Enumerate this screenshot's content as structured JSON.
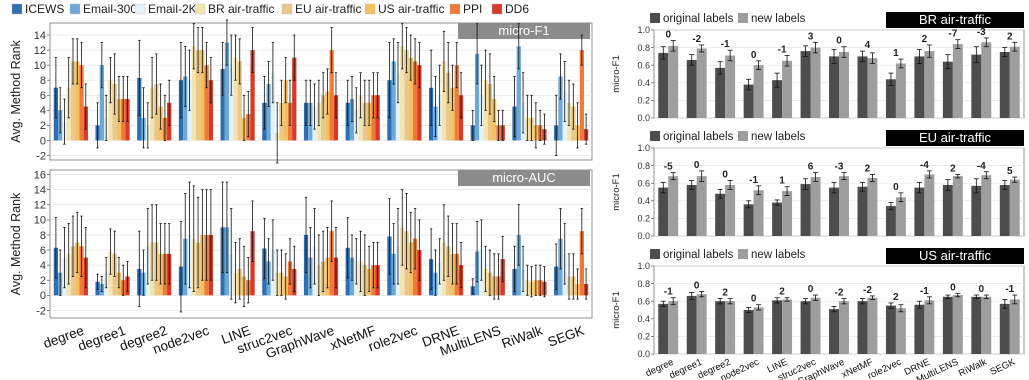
{
  "left_legend": [
    {
      "label": "ICEWS",
      "color": "#2f6fb0"
    },
    {
      "label": "Email-300",
      "color": "#6ea8d8"
    },
    {
      "label": "Email-2K",
      "color": "#e4f3fa"
    },
    {
      "label": "BR air-traffic",
      "color": "#f5e4b0"
    },
    {
      "label": "EU air-traffic",
      "color": "#e8c98a"
    },
    {
      "label": "US air-traffic",
      "color": "#f5c060"
    },
    {
      "label": "PPI",
      "color": "#f07a3a"
    },
    {
      "label": "DD6",
      "color": "#d63a2a"
    }
  ],
  "right_legend": [
    {
      "label": "original labels",
      "color": "#4d4d4d"
    },
    {
      "label": "new labels",
      "color": "#9e9e9e"
    }
  ],
  "chart_data": [
    {
      "type": "bar",
      "title": "micro-F1",
      "ylabel": "Avg. Method Rank",
      "ylim": [
        -2.6,
        15.6
      ],
      "yticks": [
        -2,
        0,
        2,
        4,
        6,
        8,
        10,
        12,
        14
      ],
      "categories": [
        "degree",
        "degree1",
        "degree2",
        "node2vec",
        "LINE",
        "struc2vec",
        "GraphWave",
        "xNetMF",
        "role2vec",
        "DRNE",
        "MultiLENS",
        "RiWalk",
        "SEGK"
      ],
      "series": [
        {
          "name": "ICEWS",
          "values": [
            7,
            2,
            8.3,
            8,
            9.5,
            5,
            5,
            5,
            8,
            7,
            2,
            4.5,
            2
          ],
          "err": [
            4,
            3,
            5,
            5,
            3.5,
            3.5,
            3,
            3,
            5,
            5,
            2,
            4,
            4
          ]
        },
        {
          "name": "Email-300",
          "values": [
            4,
            10,
            3,
            8.5,
            13,
            7.5,
            5,
            5.5,
            10.5,
            4.5,
            11.5,
            12.5,
            8.5
          ],
          "err": [
            3,
            3,
            4,
            4,
            3,
            3,
            3,
            3,
            3,
            4,
            4,
            3,
            3
          ]
        },
        {
          "name": "Email-2K",
          "values": [
            2.5,
            3,
            2,
            8,
            10,
            9,
            4.5,
            4,
            9,
            6,
            6,
            5,
            6.5
          ],
          "err": [
            3,
            3,
            3,
            4,
            4,
            4,
            3,
            3,
            4,
            4,
            4,
            4,
            4
          ]
        },
        {
          "name": "BR air-traffic",
          "values": [
            7,
            8,
            7,
            12.5,
            11,
            1,
            5,
            6,
            12.5,
            10.5,
            8,
            3,
            5
          ],
          "err": [
            4,
            3,
            4,
            3,
            3,
            4,
            3,
            3,
            3,
            4,
            4,
            3,
            3
          ]
        },
        {
          "name": "EU air-traffic",
          "values": [
            10.5,
            7.5,
            7.5,
            12,
            10.5,
            5,
            6,
            5,
            12,
            9,
            7.5,
            3,
            4.5
          ],
          "err": [
            3,
            4,
            4,
            3,
            3,
            3,
            3,
            3,
            3,
            4,
            4,
            3,
            3
          ]
        },
        {
          "name": "US air-traffic",
          "values": [
            10.5,
            5.5,
            4.5,
            12,
            3,
            8,
            6.5,
            5,
            11,
            7,
            5.5,
            2,
            2
          ],
          "err": [
            3,
            3,
            3,
            3,
            3,
            3,
            3,
            3,
            3,
            3,
            3,
            3,
            3
          ]
        },
        {
          "name": "PPI",
          "values": [
            10,
            5.5,
            3,
            10,
            3.5,
            5,
            12,
            6,
            10.5,
            10,
            2,
            2,
            12
          ],
          "err": [
            3,
            3,
            3,
            3,
            3,
            3,
            3,
            3,
            3,
            3,
            2,
            2,
            2
          ]
        },
        {
          "name": "DD6",
          "values": [
            4.5,
            5.5,
            5,
            8,
            12,
            11,
            6,
            6,
            10,
            6,
            2,
            1.5,
            1.5
          ],
          "err": [
            3,
            3,
            3,
            3,
            3,
            3,
            3,
            3,
            3,
            3,
            2,
            2,
            2
          ]
        }
      ]
    },
    {
      "type": "bar",
      "title": "micro-AUC",
      "ylabel": "Avg. Method Rank",
      "ylim": [
        -3,
        16.6
      ],
      "yticks": [
        -2,
        0,
        2,
        4,
        6,
        8,
        10,
        12,
        14,
        16
      ],
      "categories": [
        "degree",
        "degree1",
        "degree2",
        "node2vec",
        "LINE",
        "struc2vec",
        "GraphWave",
        "xNetMF",
        "role2vec",
        "DRNE",
        "MultiLENS",
        "RiWalk",
        "SEGK"
      ],
      "series": [
        {
          "name": "ICEWS",
          "values": [
            6.3,
            1.8,
            3.5,
            3.8,
            9,
            6.2,
            8,
            6.3,
            7.8,
            4.8,
            1.2,
            3.5,
            3.8
          ],
          "err": [
            4,
            1,
            5,
            6,
            6,
            4,
            5,
            4,
            5,
            4,
            1,
            3,
            3
          ]
        },
        {
          "name": "Email-300",
          "values": [
            3,
            1.5,
            3,
            7.5,
            9,
            4.5,
            5,
            5,
            5.5,
            3,
            5.8,
            8,
            7.5
          ],
          "err": [
            3,
            1,
            3,
            6,
            6,
            3,
            4,
            3,
            4,
            3,
            4,
            4,
            4
          ]
        },
        {
          "name": "Email-2K",
          "values": [
            5,
            3,
            6.5,
            8,
            5.5,
            6,
            6.5,
            4.5,
            6.5,
            4.5,
            6,
            3.5,
            5.5
          ],
          "err": [
            4,
            2,
            5,
            7,
            6,
            4,
            5,
            3,
            5,
            3,
            4,
            3,
            4
          ]
        },
        {
          "name": "BR air-traffic",
          "values": [
            5.5,
            5.8,
            7,
            7.5,
            3,
            3,
            4,
            4.5,
            9,
            7,
            3.5,
            2,
            2.5
          ],
          "err": [
            4,
            3,
            5,
            7,
            4,
            3,
            4,
            4,
            5,
            5,
            3,
            2,
            3
          ]
        },
        {
          "name": "EU air-traffic",
          "values": [
            6.5,
            5.5,
            7,
            7,
            3.5,
            3,
            4.5,
            4,
            8.5,
            6.5,
            3,
            1.8,
            2.5
          ],
          "err": [
            4,
            3,
            5,
            6,
            4,
            3,
            4,
            4,
            5,
            4,
            3,
            2,
            3
          ]
        },
        {
          "name": "US air-traffic",
          "values": [
            7,
            3,
            5.5,
            8,
            2.5,
            2.5,
            5,
            3.5,
            7,
            5.5,
            2.5,
            2,
            1.5
          ],
          "err": [
            4,
            2,
            4,
            6,
            4,
            3,
            4,
            3,
            4,
            4,
            3,
            2,
            2
          ]
        },
        {
          "name": "PPI",
          "values": [
            6.5,
            2,
            5.5,
            8,
            2,
            4.5,
            8.5,
            4,
            7.5,
            5.5,
            2.5,
            2,
            8.5
          ],
          "err": [
            4,
            2,
            4,
            6,
            3,
            3,
            4,
            3,
            4,
            4,
            3,
            2,
            3
          ]
        },
        {
          "name": "DD6",
          "values": [
            5,
            2.5,
            5.5,
            8,
            8.5,
            3.5,
            5,
            4,
            6,
            4,
            4.8,
            1.8,
            1.5
          ],
          "err": [
            4,
            2,
            4,
            6,
            4,
            3,
            4,
            3,
            4,
            3,
            3,
            2,
            2
          ]
        }
      ]
    },
    {
      "type": "bar",
      "title": "BR air-traffic",
      "ylabel": "micro-F1",
      "ylim": [
        0,
        1.0
      ],
      "yticks": [
        0.0,
        0.2,
        0.4,
        0.6,
        0.8,
        1.0
      ],
      "tick_labels": [
        "0.0",
        "0.2",
        "0.4",
        "0.6",
        "0.8",
        "1.0"
      ],
      "categories": [
        "degree",
        "degree1",
        "degree2",
        "node2vec",
        "LINE",
        "struc2vec",
        "GraphWave",
        "xNetMF",
        "role2vec",
        "DRNE",
        "MultiLENS",
        "RiWalk",
        "SEGK"
      ],
      "annotations": [
        "0",
        "-2",
        "-1",
        "0",
        "-1",
        "3",
        "0",
        "4",
        "1",
        "2",
        "-7",
        "-3",
        "2"
      ],
      "series": [
        {
          "name": "original labels",
          "values": [
            0.74,
            0.66,
            0.57,
            0.38,
            0.43,
            0.76,
            0.7,
            0.7,
            0.44,
            0.7,
            0.64,
            0.72,
            0.75
          ],
          "err": [
            0.07,
            0.06,
            0.07,
            0.06,
            0.08,
            0.06,
            0.08,
            0.06,
            0.07,
            0.08,
            0.08,
            0.09,
            0.05
          ]
        },
        {
          "name": "new labels",
          "values": [
            0.82,
            0.79,
            0.71,
            0.6,
            0.65,
            0.8,
            0.75,
            0.68,
            0.62,
            0.76,
            0.84,
            0.86,
            0.81
          ],
          "err": [
            0.06,
            0.04,
            0.06,
            0.05,
            0.06,
            0.06,
            0.06,
            0.06,
            0.05,
            0.07,
            0.05,
            0.05,
            0.05
          ]
        }
      ]
    },
    {
      "type": "bar",
      "title": "EU air-traffic",
      "ylabel": "micro-F1",
      "ylim": [
        0,
        1.0
      ],
      "yticks": [
        0.0,
        0.2,
        0.4,
        0.6,
        0.8,
        1.0
      ],
      "tick_labels": [
        "0.0",
        "0.2",
        "0.4",
        "0.6",
        "0.8",
        "1.0"
      ],
      "categories": [
        "degree",
        "degree1",
        "degree2",
        "node2vec",
        "LINE",
        "struc2vec",
        "GraphWave",
        "xNetMF",
        "role2vec",
        "DRNE",
        "MultiLENS",
        "RiWalk",
        "SEGK"
      ],
      "annotations": [
        "-5",
        "0",
        "0",
        "-1",
        "1",
        "6",
        "-3",
        "2",
        "0",
        "-4",
        "2",
        "-4",
        "5"
      ],
      "series": [
        {
          "name": "original labels",
          "values": [
            0.55,
            0.58,
            0.48,
            0.36,
            0.38,
            0.59,
            0.55,
            0.56,
            0.34,
            0.55,
            0.58,
            0.57,
            0.58
          ],
          "err": [
            0.06,
            0.05,
            0.05,
            0.04,
            0.03,
            0.06,
            0.06,
            0.05,
            0.04,
            0.06,
            0.06,
            0.08,
            0.05
          ]
        },
        {
          "name": "new labels",
          "values": [
            0.68,
            0.68,
            0.58,
            0.52,
            0.51,
            0.67,
            0.68,
            0.66,
            0.44,
            0.7,
            0.68,
            0.69,
            0.64
          ],
          "err": [
            0.04,
            0.06,
            0.05,
            0.05,
            0.05,
            0.05,
            0.04,
            0.04,
            0.05,
            0.04,
            0.02,
            0.04,
            0.03
          ]
        }
      ]
    },
    {
      "type": "bar",
      "title": "US air-traffic",
      "ylabel": "micro-F1",
      "ylim": [
        0,
        1.0
      ],
      "yticks": [
        0.0,
        0.2,
        0.4,
        0.6,
        0.8,
        1.0
      ],
      "tick_labels": [
        "0.0",
        "0.2",
        "0.4",
        "0.6",
        "0.8",
        "1.0"
      ],
      "categories": [
        "degree",
        "degree1",
        "degree2",
        "node2vec",
        "LINE",
        "struc2vec",
        "GraphWave",
        "xNetMF",
        "role2vec",
        "DRNE",
        "MultiLENS",
        "RiWalk",
        "SEGK"
      ],
      "annotations": [
        "-1",
        "0",
        "2",
        "0",
        "2",
        "0",
        "-2",
        "-2",
        "2",
        "-1",
        "0",
        "0",
        "-1"
      ],
      "series": [
        {
          "name": "original labels",
          "values": [
            0.57,
            0.66,
            0.6,
            0.5,
            0.61,
            0.6,
            0.51,
            0.6,
            0.55,
            0.56,
            0.65,
            0.65,
            0.57
          ],
          "err": [
            0.03,
            0.04,
            0.03,
            0.03,
            0.03,
            0.03,
            0.03,
            0.03,
            0.03,
            0.04,
            0.02,
            0.02,
            0.05
          ]
        },
        {
          "name": "new labels",
          "values": [
            0.6,
            0.68,
            0.6,
            0.53,
            0.62,
            0.64,
            0.6,
            0.64,
            0.52,
            0.61,
            0.67,
            0.65,
            0.62
          ],
          "err": [
            0.04,
            0.03,
            0.03,
            0.03,
            0.02,
            0.03,
            0.03,
            0.02,
            0.04,
            0.04,
            0.02,
            0.02,
            0.05
          ]
        }
      ]
    }
  ]
}
